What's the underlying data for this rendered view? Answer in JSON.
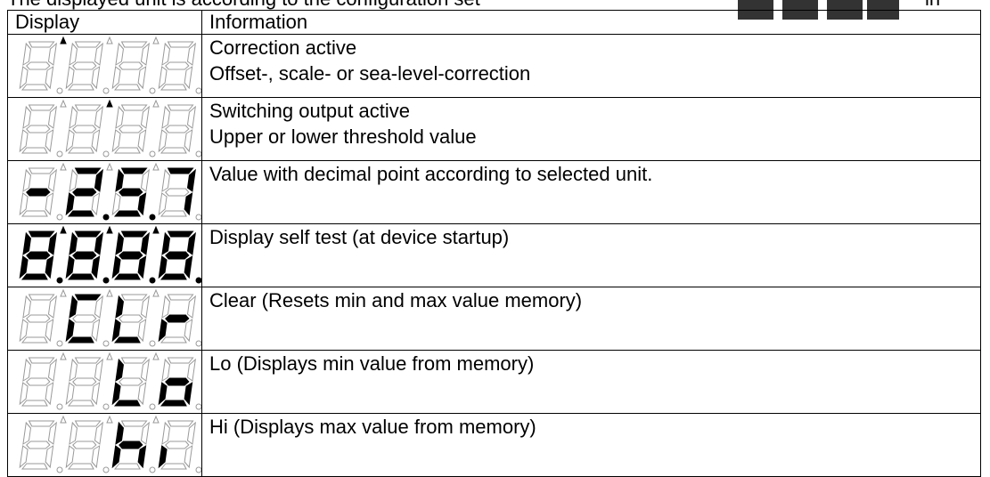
{
  "intro": {
    "text": "The displayed unit is according to the configuration set",
    "tail": "in"
  },
  "table": {
    "header": [
      "Display",
      "Information"
    ],
    "rows": [
      [
        "Correction active",
        "Offset-, scale- or sea-level-correction"
      ],
      [
        "Switching output active",
        "Upper or lower threshold value"
      ],
      [
        "Value with decimal point according to selected unit."
      ],
      [
        "Display self test (at device startup)"
      ],
      [
        "Clear (Resets min and max value memory)"
      ],
      [
        "Lo (Displays min value from memory)"
      ],
      [
        "Hi (Displays max value from memory)"
      ]
    ]
  }
}
